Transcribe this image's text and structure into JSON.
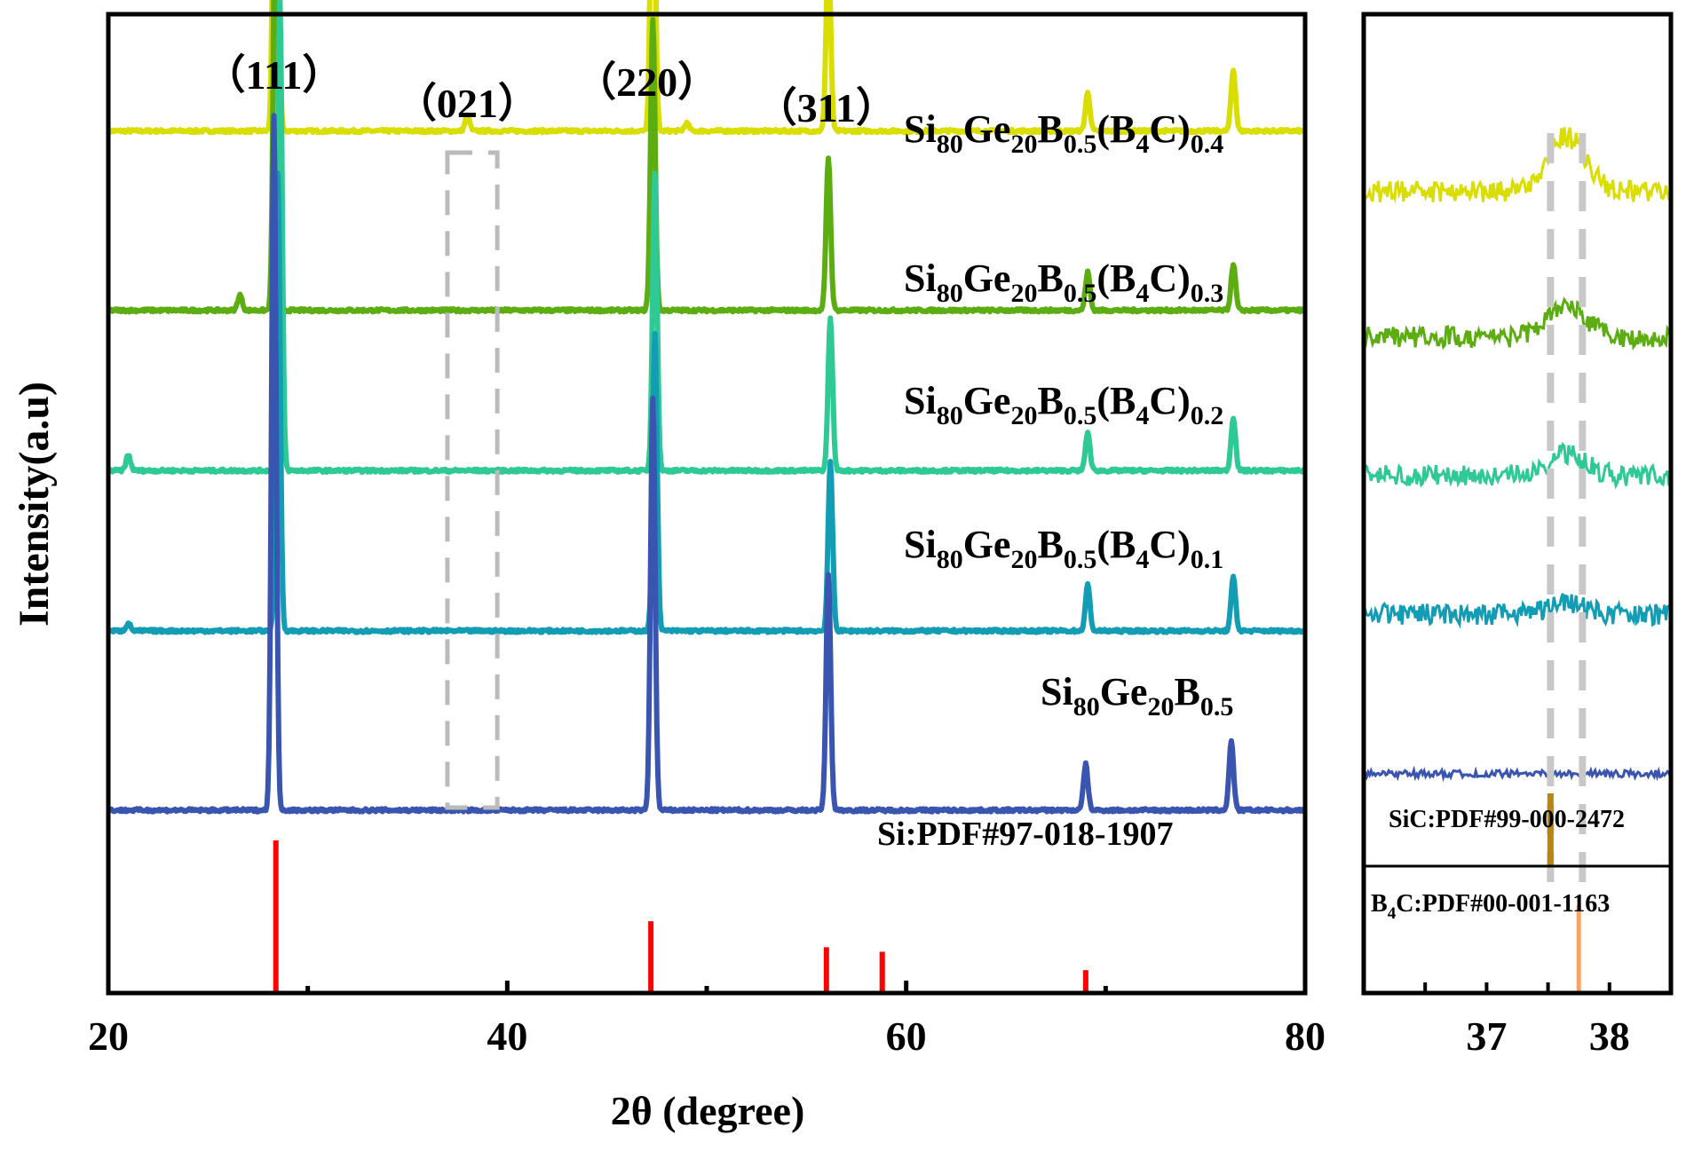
{
  "chart_data": [
    {
      "type": "line",
      "title": "",
      "xlabel": "2θ (degree)",
      "ylabel": "Intensity(a.u)",
      "xlim": [
        20,
        80
      ],
      "xticks": [
        20,
        40,
        60,
        80
      ],
      "series": [
        {
          "name": "Si80Ge20B0.5(B4C)0.4",
          "color": "#d9de00",
          "base": 0.84,
          "peaks": [
            [
              28.4,
              0.8
            ],
            [
              38.0,
              0.02
            ],
            [
              47.3,
              0.45
            ],
            [
              49.0,
              0.01
            ],
            [
              56.1,
              0.24
            ],
            [
              69.1,
              0.05
            ],
            [
              76.4,
              0.08
            ]
          ]
        },
        {
          "name": "Si80Ge20B0.5(B4C)0.3",
          "color": "#5cad12",
          "base": 0.605,
          "peaks": [
            [
              26.6,
              0.02
            ],
            [
              28.4,
              0.66
            ],
            [
              47.3,
              0.38
            ],
            [
              56.1,
              0.2
            ],
            [
              69.1,
              0.05
            ],
            [
              76.4,
              0.06
            ]
          ]
        },
        {
          "name": "Si80Ge20B0.5(B4C)0.2",
          "color": "#2ec994",
          "base": 0.395,
          "peaks": [
            [
              21.0,
              0.02
            ],
            [
              28.6,
              0.62
            ],
            [
              47.4,
              0.39
            ],
            [
              56.2,
              0.2
            ],
            [
              69.1,
              0.05
            ],
            [
              76.4,
              0.07
            ]
          ]
        },
        {
          "name": "Si80Ge20B0.5(B4C)0.1",
          "color": "#129db4",
          "base": 0.185,
          "peaks": [
            [
              21.0,
              0.01
            ],
            [
              28.5,
              0.6
            ],
            [
              47.4,
              0.39
            ],
            [
              56.2,
              0.22
            ],
            [
              69.1,
              0.06
            ],
            [
              76.4,
              0.07
            ]
          ]
        },
        {
          "name": "Si80Ge20B0.5",
          "color": "#3a55b0",
          "base": -0.05,
          "peaks": [
            [
              28.3,
              0.91
            ],
            [
              47.3,
              0.54
            ],
            [
              56.1,
              0.31
            ],
            [
              69.0,
              0.06
            ],
            [
              76.3,
              0.09
            ]
          ]
        }
      ],
      "labels": [
        {
          "base": "Si",
          "subs": [
            [
              "80",
              "Ge"
            ],
            [
              "20",
              "B"
            ],
            [
              "0.5",
              "(B"
            ],
            [
              "4",
              "C)"
            ],
            [
              "0.4",
              ""
            ]
          ]
        },
        {
          "base": "Si",
          "subs": [
            [
              "80",
              "Ge"
            ],
            [
              "20",
              "B"
            ],
            [
              "0.5",
              "(B"
            ],
            [
              "4",
              "C)"
            ],
            [
              "0.3",
              ""
            ]
          ]
        },
        {
          "base": "Si",
          "subs": [
            [
              "80",
              "Ge"
            ],
            [
              "20",
              "B"
            ],
            [
              "0.5",
              "(B"
            ],
            [
              "4",
              "C)"
            ],
            [
              "0.2",
              ""
            ]
          ]
        },
        {
          "base": "Si",
          "subs": [
            [
              "80",
              "Ge"
            ],
            [
              "20",
              "B"
            ],
            [
              "0.5",
              "(B"
            ],
            [
              "4",
              "C)"
            ],
            [
              "0.1",
              ""
            ]
          ]
        },
        {
          "base": "Si",
          "subs": [
            [
              "80",
              "Ge"
            ],
            [
              "20",
              "B"
            ],
            [
              "0.5",
              ""
            ]
          ]
        }
      ],
      "annotations": [
        "（111）",
        "（021）",
        "（220）",
        "（311）"
      ],
      "annotation_x": [
        28.3,
        38.0,
        47.0,
        56.0
      ],
      "reference": {
        "name": "Si:PDF#97-018-1907",
        "color": "#ff0000",
        "positions": [
          28.4,
          47.2,
          56.0,
          58.8,
          69.0
        ],
        "intensities": [
          1.0,
          0.47,
          0.3,
          0.27,
          0.15
        ]
      },
      "highlight_box": {
        "xmin": 37.0,
        "xmax": 39.5,
        "style": "dashed",
        "color": "#bbbbbb"
      }
    },
    {
      "type": "line",
      "title": "",
      "xlabel": "",
      "ylabel": "",
      "xlim": [
        36.0,
        38.5
      ],
      "xticks": [
        37,
        38
      ],
      "series_colors": [
        "#d9de00",
        "#5cad12",
        "#2ec994",
        "#129db4",
        "#3a55b0"
      ],
      "references": [
        {
          "base": "SiC:PDF#99-000-2472",
          "color": "#b8860b",
          "position": 37.52
        },
        {
          "base": "B",
          "sub": "4",
          "rest": "C:PDF#00-001-1163",
          "color": "#f4a460",
          "position": 37.75
        }
      ],
      "dashed_lines_x": [
        37.52,
        37.78
      ]
    }
  ]
}
